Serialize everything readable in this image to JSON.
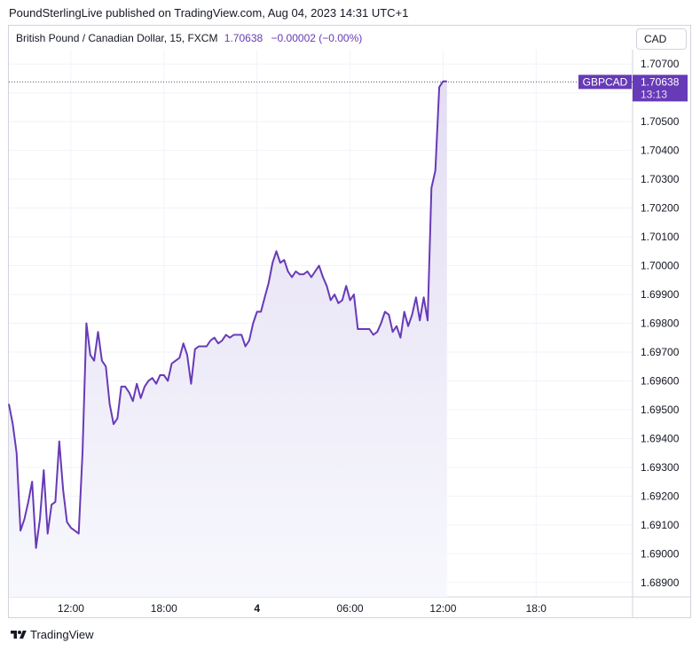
{
  "header": {
    "published": "PoundSterlingLive published on TradingView.com, Aug 04, 2023 14:31 UTC+1"
  },
  "legend": {
    "symbol": "British Pound / Canadian Dollar, 15, FXCM",
    "value": "1.70638",
    "change": "−0.00002 (−0.00%)"
  },
  "currency_button": "CAD",
  "price_tag": {
    "symbol": "GBPCAD",
    "price": "1.70638",
    "countdown": "13:13"
  },
  "footer": {
    "brand": "TradingView"
  },
  "colors": {
    "line": "#673ab7",
    "tag_bg": "#673ab7",
    "fill_top": "#e4ddf3",
    "fill_bottom": "#f7f8fd"
  },
  "chart_data": {
    "type": "area",
    "title": "",
    "xlabel": "",
    "ylabel": "",
    "ylim": [
      1.6885,
      1.7075
    ],
    "y_ticks": [
      "1.70700",
      "1.70600",
      "1.70500",
      "1.70400",
      "1.70300",
      "1.70200",
      "1.70100",
      "1.70000",
      "1.69900",
      "1.69800",
      "1.69700",
      "1.69600",
      "1.69500",
      "1.69400",
      "1.69300",
      "1.69200",
      "1.69100",
      "1.69000",
      "1.68900"
    ],
    "x_ticks": [
      {
        "label": "12:00",
        "i": 16,
        "bold": false
      },
      {
        "label": "18:00",
        "i": 40,
        "bold": false
      },
      {
        "label": "4",
        "i": 64,
        "bold": true
      },
      {
        "label": "06:00",
        "i": 88,
        "bold": false
      },
      {
        "label": "12:00",
        "i": 112,
        "bold": false
      },
      {
        "label": "18:0",
        "i": 136,
        "bold": false
      }
    ],
    "grid": true,
    "last_price_line": 1.70638,
    "series": [
      {
        "values": [
          1.6952,
          1.6945,
          1.6935,
          1.6908,
          1.6912,
          1.6918,
          1.6925,
          1.6902,
          1.6912,
          1.6929,
          1.6907,
          1.6917,
          1.6918,
          1.6939,
          1.6922,
          1.6911,
          1.6909,
          1.6908,
          1.6907,
          1.6935,
          1.698,
          1.6969,
          1.6967,
          1.6977,
          1.6967,
          1.6965,
          1.6952,
          1.6945,
          1.6947,
          1.6958,
          1.6958,
          1.6956,
          1.6953,
          1.6959,
          1.6954,
          1.6958,
          1.696,
          1.6961,
          1.6959,
          1.6962,
          1.6962,
          1.696,
          1.6966,
          1.6967,
          1.6968,
          1.6973,
          1.6969,
          1.6959,
          1.6971,
          1.6972,
          1.6972,
          1.6972,
          1.6974,
          1.6975,
          1.6973,
          1.6974,
          1.6976,
          1.6975,
          1.6976,
          1.6976,
          1.6976,
          1.6972,
          1.6974,
          1.698,
          1.6984,
          1.6984,
          1.6989,
          1.6994,
          1.7001,
          1.7005,
          1.7001,
          1.7002,
          1.6998,
          1.6996,
          1.6998,
          1.6997,
          1.6997,
          1.6998,
          1.6996,
          1.6998,
          1.7,
          1.6996,
          1.6993,
          1.6988,
          1.699,
          1.6987,
          1.6988,
          1.6993,
          1.6988,
          1.699,
          1.6978,
          1.6978,
          1.6978,
          1.6978,
          1.6976,
          1.6977,
          1.698,
          1.6984,
          1.6983,
          1.6977,
          1.6979,
          1.6975,
          1.6984,
          1.6979,
          1.6983,
          1.6989,
          1.6981,
          1.6989,
          1.6981,
          1.7027,
          1.7033,
          1.7062,
          1.7064,
          1.7064
        ]
      }
    ]
  }
}
